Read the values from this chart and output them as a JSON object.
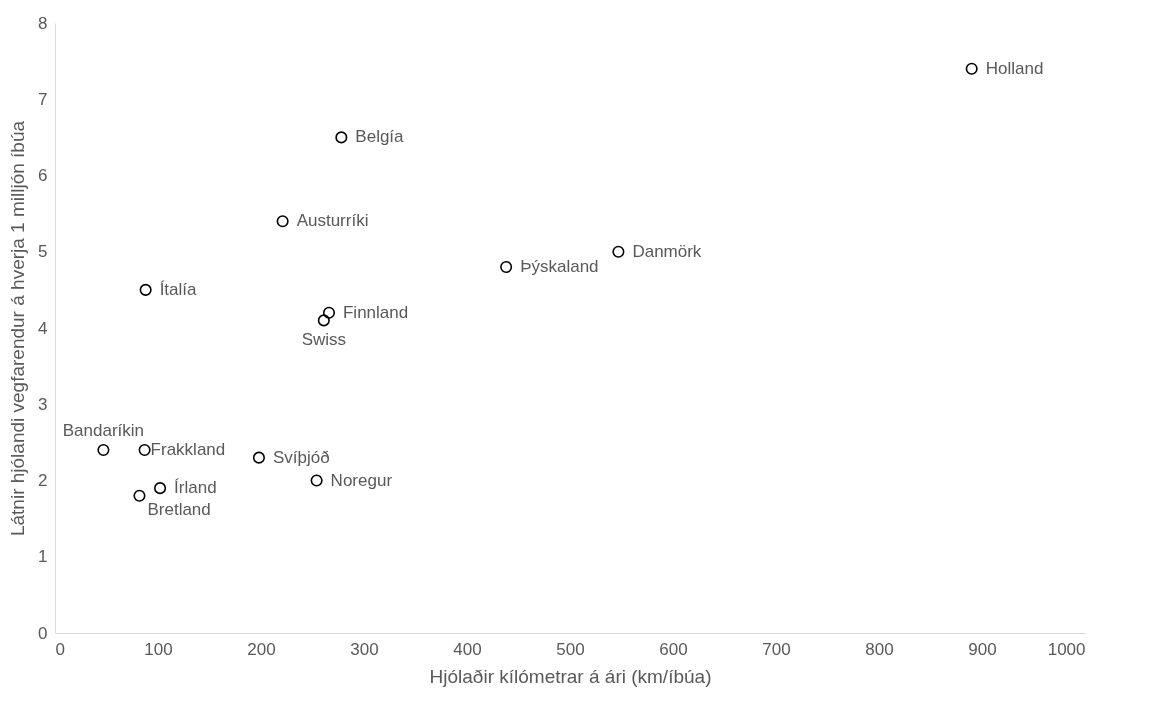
{
  "chart_data": {
    "type": "scatter",
    "xlabel": "Hjólaðir kílómetrar á ári (km/íbúa)",
    "ylabel": "Látnir hjólandi vegfarendur á hverja 1 milljón íbúa",
    "x": [
      890,
      278,
      221,
      547,
      438,
      88,
      266,
      261,
      47,
      87,
      198,
      254,
      102,
      82
    ],
    "series": [
      {
        "color": "#000000",
        "values": [
          7.4,
          6.5,
          5.4,
          5.0,
          4.8,
          4.5,
          4.2,
          4.1,
          2.4,
          2.4,
          2.3,
          2.0,
          1.9,
          1.8
        ]
      }
    ],
    "marker": "circle",
    "grid": false,
    "xlim": [
      0,
      1000
    ],
    "xticks": [
      0,
      100,
      200,
      300,
      400,
      500,
      600,
      700,
      800,
      900,
      1000
    ],
    "ylim": [
      0,
      8
    ],
    "yticks": [
      0,
      1,
      2,
      3,
      4,
      5,
      6,
      7,
      8
    ],
    "annotations": [
      {
        "text": "Holland",
        "x": 890,
        "y": 7.4
      },
      {
        "text": "Belgía",
        "x": 278,
        "y": 6.5
      },
      {
        "text": "Austurríki",
        "x": 221,
        "y": 5.4
      },
      {
        "text": "Danmörk",
        "x": 547,
        "y": 5.0
      },
      {
        "text": "Þýskaland",
        "x": 438,
        "y": 4.8
      },
      {
        "text": "Ítalía",
        "x": 88,
        "y": 4.5
      },
      {
        "text": "Finnland",
        "x": 266,
        "y": 4.2
      },
      {
        "text": "Swiss",
        "x": 261,
        "y": 4.1
      },
      {
        "text": "Bandaríkin",
        "x": 47,
        "y": 2.4
      },
      {
        "text": "Frakkland",
        "x": 87,
        "y": 2.4
      },
      {
        "text": "Svíþjóð",
        "x": 198,
        "y": 2.3
      },
      {
        "text": "Noregur",
        "x": 254,
        "y": 2.0
      },
      {
        "text": "Írland",
        "x": 102,
        "y": 1.9
      },
      {
        "text": "Bretland",
        "x": 82,
        "y": 1.8
      }
    ]
  }
}
